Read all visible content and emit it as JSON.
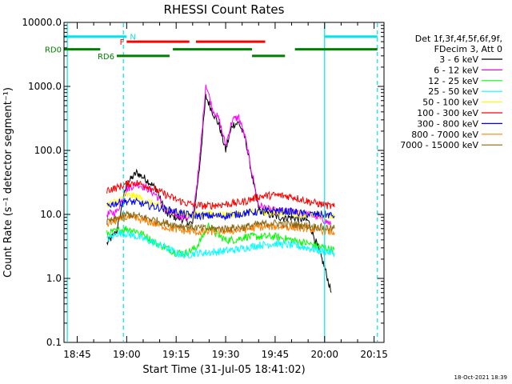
{
  "chart_data": {
    "type": "line",
    "title": "RHESSI Count Rates",
    "xlabel": "Start Time (31-Jul-05 18:41:02)",
    "ylabel": "Count Rate (s⁻¹ detector segment⁻¹)",
    "yscale": "log",
    "ylim": [
      0.1,
      10000
    ],
    "xlim": [
      "18:41",
      "20:18"
    ],
    "x_ticks": [
      "18:45",
      "19:00",
      "19:15",
      "19:30",
      "19:45",
      "20:00",
      "20:15"
    ],
    "y_ticks": [
      "0.1",
      "1.0",
      "10.0",
      "100.0",
      "1000.0",
      "10000.0"
    ],
    "legend_title_lines": [
      "Det 1f,3f,4f,5f,6f,9f,",
      "FDecim 3, Att 0"
    ],
    "legend_placement": "right",
    "series": [
      {
        "name": "3 - 6 keV",
        "color": "#000000",
        "points": [
          [
            "18:54",
            3.5
          ],
          [
            "18:57",
            5.5
          ],
          [
            "19:00",
            30
          ],
          [
            "19:03",
            45
          ],
          [
            "19:06",
            35
          ],
          [
            "19:09",
            25
          ],
          [
            "19:12",
            10
          ],
          [
            "19:15",
            9
          ],
          [
            "19:18",
            8
          ],
          [
            "19:20",
            7
          ],
          [
            "19:22",
            50
          ],
          [
            "19:24",
            700
          ],
          [
            "19:26",
            400
          ],
          [
            "19:28",
            250
          ],
          [
            "19:30",
            100
          ],
          [
            "19:32",
            250
          ],
          [
            "19:34",
            270
          ],
          [
            "19:36",
            150
          ],
          [
            "19:38",
            40
          ],
          [
            "19:40",
            12
          ],
          [
            "19:43",
            10
          ],
          [
            "19:46",
            9
          ],
          [
            "19:50",
            9
          ],
          [
            "19:55",
            8
          ],
          [
            "19:58",
            3
          ],
          [
            "20:00",
            1.5
          ],
          [
            "20:02",
            0.6
          ]
        ]
      },
      {
        "name": "6 - 12 keV",
        "color": "#ff00ff",
        "points": [
          [
            "18:54",
            10
          ],
          [
            "18:57",
            11
          ],
          [
            "19:00",
            25
          ],
          [
            "19:03",
            30
          ],
          [
            "19:06",
            26
          ],
          [
            "19:09",
            20
          ],
          [
            "19:12",
            11
          ],
          [
            "19:15",
            10
          ],
          [
            "19:18",
            9
          ],
          [
            "19:20",
            9
          ],
          [
            "19:22",
            60
          ],
          [
            "19:24",
            1100
          ],
          [
            "19:26",
            450
          ],
          [
            "19:28",
            300
          ],
          [
            "19:30",
            120
          ],
          [
            "19:32",
            300
          ],
          [
            "19:34",
            330
          ],
          [
            "19:36",
            150
          ],
          [
            "19:38",
            45
          ],
          [
            "19:40",
            14
          ],
          [
            "19:43",
            12
          ],
          [
            "19:46",
            11
          ],
          [
            "19:50",
            11
          ],
          [
            "19:55",
            10
          ],
          [
            "19:58",
            9
          ],
          [
            "20:00",
            8
          ],
          [
            "20:02",
            7
          ]
        ]
      },
      {
        "name": "12 - 25 keV",
        "color": "#00ff00",
        "points": [
          [
            "18:54",
            5
          ],
          [
            "18:57",
            5.5
          ],
          [
            "19:00",
            6
          ],
          [
            "19:03",
            5.5
          ],
          [
            "19:06",
            4.5
          ],
          [
            "19:09",
            3.5
          ],
          [
            "19:12",
            3
          ],
          [
            "19:15",
            2.5
          ],
          [
            "19:18",
            2.5
          ],
          [
            "19:21",
            3
          ],
          [
            "19:23",
            4.5
          ],
          [
            "19:25",
            7
          ],
          [
            "19:27",
            5
          ],
          [
            "19:30",
            4
          ],
          [
            "19:33",
            4
          ],
          [
            "19:36",
            4.5
          ],
          [
            "19:40",
            4.5
          ],
          [
            "19:45",
            4.5
          ],
          [
            "19:50",
            4
          ],
          [
            "19:55",
            3.5
          ],
          [
            "20:00",
            3
          ],
          [
            "20:03",
            2.8
          ]
        ]
      },
      {
        "name": "25 - 50 keV",
        "color": "#00ffff",
        "points": [
          [
            "18:54",
            4
          ],
          [
            "18:57",
            5
          ],
          [
            "19:00",
            5
          ],
          [
            "19:03",
            4.5
          ],
          [
            "19:06",
            4
          ],
          [
            "19:09",
            3.5
          ],
          [
            "19:12",
            3
          ],
          [
            "19:15",
            2.5
          ],
          [
            "19:18",
            2.3
          ],
          [
            "19:21",
            2.5
          ],
          [
            "19:24",
            2.5
          ],
          [
            "19:27",
            2.6
          ],
          [
            "19:30",
            2.7
          ],
          [
            "19:33",
            2.8
          ],
          [
            "19:36",
            3
          ],
          [
            "19:40",
            3.3
          ],
          [
            "19:45",
            3.5
          ],
          [
            "19:50",
            3.3
          ],
          [
            "19:55",
            3
          ],
          [
            "20:00",
            2.6
          ],
          [
            "20:03",
            2.5
          ]
        ]
      },
      {
        "name": "50 - 100 keV",
        "color": "#ffff00",
        "points": [
          [
            "18:54",
            14
          ],
          [
            "18:57",
            16
          ],
          [
            "19:00",
            20
          ],
          [
            "19:03",
            19
          ],
          [
            "19:06",
            16
          ],
          [
            "19:09",
            14
          ],
          [
            "19:12",
            12
          ],
          [
            "19:15",
            11
          ],
          [
            "19:18",
            10
          ],
          [
            "19:21",
            10
          ],
          [
            "19:24",
            10
          ],
          [
            "19:27",
            10
          ],
          [
            "19:30",
            10
          ],
          [
            "19:33",
            10
          ],
          [
            "19:36",
            10.5
          ],
          [
            "19:40",
            11
          ],
          [
            "19:45",
            11
          ],
          [
            "19:50",
            10.5
          ],
          [
            "19:55",
            10
          ],
          [
            "20:00",
            9.5
          ],
          [
            "20:03",
            9
          ]
        ]
      },
      {
        "name": "100 - 300 keV",
        "color": "#ff0000",
        "points": [
          [
            "18:54",
            24
          ],
          [
            "18:57",
            26
          ],
          [
            "19:00",
            30
          ],
          [
            "19:03",
            31
          ],
          [
            "19:06",
            28
          ],
          [
            "19:09",
            24
          ],
          [
            "19:12",
            20
          ],
          [
            "19:15",
            17
          ],
          [
            "19:18",
            15
          ],
          [
            "19:21",
            14
          ],
          [
            "19:24",
            13.5
          ],
          [
            "19:27",
            14
          ],
          [
            "19:30",
            14.5
          ],
          [
            "19:33",
            15
          ],
          [
            "19:36",
            16
          ],
          [
            "19:40",
            19
          ],
          [
            "19:45",
            20
          ],
          [
            "19:50",
            19
          ],
          [
            "19:55",
            16
          ],
          [
            "20:00",
            14
          ],
          [
            "20:03",
            13
          ]
        ]
      },
      {
        "name": "300 - 800 keV",
        "color": "#0000ff",
        "points": [
          [
            "18:54",
            14
          ],
          [
            "18:57",
            15
          ],
          [
            "19:00",
            16
          ],
          [
            "19:03",
            15.5
          ],
          [
            "19:06",
            14
          ],
          [
            "19:09",
            13
          ],
          [
            "19:12",
            12
          ],
          [
            "19:15",
            11
          ],
          [
            "19:18",
            10
          ],
          [
            "19:21",
            9.5
          ],
          [
            "19:24",
            9.5
          ],
          [
            "19:27",
            9.5
          ],
          [
            "19:30",
            9.5
          ],
          [
            "19:33",
            10
          ],
          [
            "19:36",
            10.5
          ],
          [
            "19:40",
            11
          ],
          [
            "19:45",
            11.5
          ],
          [
            "19:50",
            11
          ],
          [
            "19:55",
            10
          ],
          [
            "20:00",
            10
          ],
          [
            "20:03",
            9.5
          ]
        ]
      },
      {
        "name": "800 - 7000 keV",
        "color": "#ff8000",
        "points": [
          [
            "18:54",
            7
          ],
          [
            "18:57",
            8
          ],
          [
            "19:00",
            9
          ],
          [
            "19:03",
            8.5
          ],
          [
            "19:06",
            7.8
          ],
          [
            "19:09",
            7
          ],
          [
            "19:12",
            6.3
          ],
          [
            "19:15",
            5.8
          ],
          [
            "19:18",
            5.5
          ],
          [
            "19:21",
            5.3
          ],
          [
            "19:24",
            5.3
          ],
          [
            "19:27",
            5.4
          ],
          [
            "19:30",
            5.5
          ],
          [
            "19:33",
            5.6
          ],
          [
            "19:36",
            5.8
          ],
          [
            "19:40",
            6.3
          ],
          [
            "19:45",
            6.5
          ],
          [
            "19:50",
            6.3
          ],
          [
            "19:55",
            6
          ],
          [
            "20:00",
            5.5
          ],
          [
            "20:03",
            5.2
          ]
        ]
      },
      {
        "name": "7000 - 15000 keV",
        "color": "#8b6914",
        "points": [
          [
            "18:54",
            7.5
          ],
          [
            "18:57",
            8.5
          ],
          [
            "19:00",
            10
          ],
          [
            "19:03",
            9.5
          ],
          [
            "19:06",
            8.8
          ],
          [
            "19:09",
            8
          ],
          [
            "19:12",
            7.3
          ],
          [
            "19:15",
            6.8
          ],
          [
            "19:18",
            6.5
          ],
          [
            "19:21",
            6.2
          ],
          [
            "19:24",
            6
          ],
          [
            "19:27",
            6
          ],
          [
            "19:30",
            6
          ],
          [
            "19:33",
            6.2
          ],
          [
            "19:36",
            6.4
          ],
          [
            "19:40",
            7
          ],
          [
            "19:45",
            7.3
          ],
          [
            "19:50",
            7
          ],
          [
            "19:55",
            6.6
          ],
          [
            "20:00",
            6.2
          ],
          [
            "20:03",
            6
          ]
        ]
      }
    ],
    "state_bars": [
      {
        "label": "N",
        "color": "#00e5ee",
        "y": 6000,
        "segments": [
          [
            "18:41",
            "19:00"
          ],
          [
            "20:00",
            "20:16"
          ]
        ]
      },
      {
        "label": "F",
        "color": "#ff0000",
        "y": 5000,
        "segments": [
          [
            "19:00",
            "19:19"
          ],
          [
            "19:21",
            "19:42"
          ]
        ]
      },
      {
        "label": "RD0",
        "color": "#008000",
        "y": 3800,
        "segments": [
          [
            "18:41",
            "18:52"
          ],
          [
            "19:14",
            "19:38"
          ],
          [
            "19:51",
            "20:16"
          ]
        ]
      },
      {
        "label": "RD6",
        "color": "#008000",
        "y": 3000,
        "segments": [
          [
            "18:57",
            "19:13"
          ],
          [
            "19:38",
            "19:48"
          ]
        ]
      }
    ],
    "vertical_lines": [
      {
        "x": "18:42",
        "color": "#00e5ee",
        "style": "solid"
      },
      {
        "x": "18:59",
        "color": "#00e5ee",
        "style": "dashed"
      },
      {
        "x": "20:00",
        "color": "#00e5ee",
        "style": "solid"
      },
      {
        "x": "20:16",
        "color": "#00e5ee",
        "style": "dashed"
      }
    ]
  },
  "footer_timestamp": "18-Oct-2021 18:39"
}
